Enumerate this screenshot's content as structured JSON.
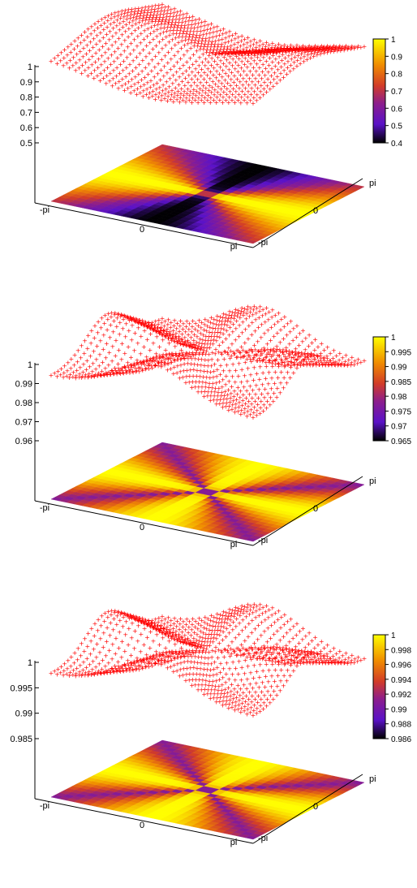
{
  "chart_data": [
    {
      "type": "heatmap",
      "title": "",
      "x_range_labels": [
        "-pi",
        "0",
        "pi"
      ],
      "y_range_labels": [
        "-pi",
        "0",
        "pi"
      ],
      "zlim": [
        0.4,
        1.0
      ],
      "z_ticks": [
        "0.5",
        "0.6",
        "0.7",
        "0.8",
        "0.9",
        "1"
      ],
      "colorbar_range": [
        0.4,
        1.0
      ],
      "colorbar_ticks": [
        "0.4",
        "0.5",
        "0.6",
        "0.7",
        "0.8",
        "0.9",
        "1"
      ],
      "angular_lobes": 2,
      "surface_color": "#ff0000",
      "surface_marker": "+",
      "palette": "black-purple-red-orange-yellow"
    },
    {
      "type": "heatmap",
      "title": "",
      "x_range_labels": [
        "-pi",
        "0",
        "pi"
      ],
      "y_range_labels": [
        "-pi",
        "0",
        "pi"
      ],
      "zlim": [
        0.965,
        1.0
      ],
      "z_ticks": [
        "0.96",
        "0.97",
        "0.98",
        "0.99",
        "1"
      ],
      "colorbar_range": [
        0.965,
        1.0
      ],
      "colorbar_ticks": [
        "0.965",
        "0.97",
        "0.975",
        "0.98",
        "0.985",
        "0.99",
        "0.995",
        "1"
      ],
      "angular_lobes": 4,
      "surface_color": "#ff0000",
      "surface_marker": "+",
      "palette": "black-purple-red-orange-yellow"
    },
    {
      "type": "heatmap",
      "title": "",
      "x_range_labels": [
        "-pi",
        "0",
        "pi"
      ],
      "y_range_labels": [
        "-pi",
        "0",
        "pi"
      ],
      "zlim": [
        0.986,
        1.0
      ],
      "z_ticks": [
        "0.985",
        "0.99",
        "0.995",
        "1"
      ],
      "colorbar_range": [
        0.986,
        1.0
      ],
      "colorbar_ticks": [
        "0.986",
        "0.988",
        "0.99",
        "0.992",
        "0.994",
        "0.996",
        "0.998",
        "1"
      ],
      "angular_lobes": 4,
      "surface_color": "#ff0000",
      "surface_marker": "+",
      "palette": "black-purple-red-orange-yellow"
    }
  ]
}
